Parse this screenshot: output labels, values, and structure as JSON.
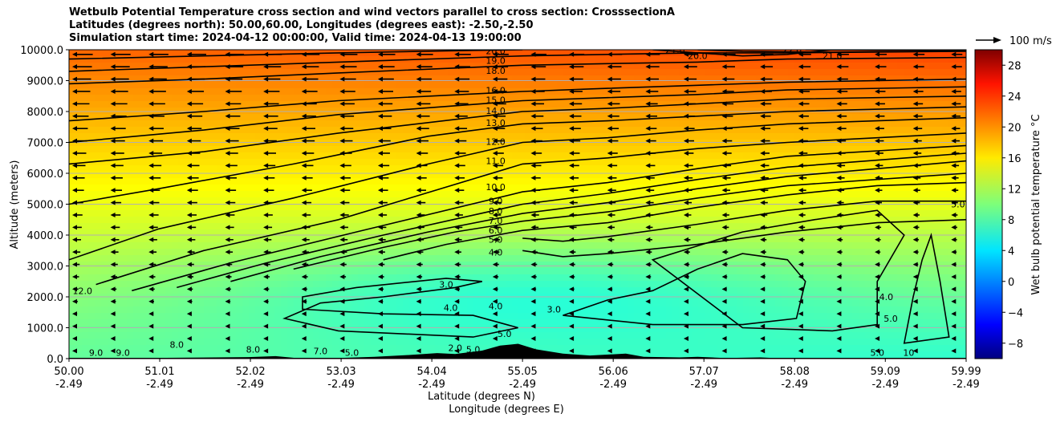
{
  "title_lines": [
    "Wetbulb Potential Temperature cross section and wind vectors parallel to cross section: CrosssectionA",
    "Latitudes (degrees north): 50.00,60.00, Longitudes (degrees east): -2.50,-2.50",
    "Simulation start time: 2024-04-12 00:00:00, Valid time: 2024-04-13 19:00:00"
  ],
  "chart_data": {
    "type": "heatmap",
    "xlabel_lat": "Latitude (degrees N)",
    "xlabel_lon": "Longitude (degrees E)",
    "ylabel": "Altitude (meters)",
    "colorbar_label": "Wet bulb potential temperature °C",
    "colorbar_range": [
      -10,
      30
    ],
    "colorbar_ticks": [
      "−8",
      "−4",
      "0",
      "4",
      "8",
      "12",
      "16",
      "20",
      "24",
      "28"
    ],
    "colorbar_tick_values": [
      -8,
      -4,
      0,
      4,
      8,
      12,
      16,
      20,
      24,
      28
    ],
    "colormap": "jet",
    "xlim": [
      50.0,
      59.99
    ],
    "ylim": [
      0,
      10000
    ],
    "x_ticks": [
      {
        "value": 50.0,
        "lat": "50.00",
        "lon": "-2.49"
      },
      {
        "value": 51.01,
        "lat": "51.01",
        "lon": "-2.49"
      },
      {
        "value": 52.02,
        "lat": "52.02",
        "lon": "-2.49"
      },
      {
        "value": 53.03,
        "lat": "53.03",
        "lon": "-2.49"
      },
      {
        "value": 54.04,
        "lat": "54.04",
        "lon": "-2.49"
      },
      {
        "value": 55.05,
        "lat": "55.05",
        "lon": "-2.49"
      },
      {
        "value": 56.06,
        "lat": "56.06",
        "lon": "-2.49"
      },
      {
        "value": 57.07,
        "lat": "57.07",
        "lon": "-2.49"
      },
      {
        "value": 58.08,
        "lat": "58.08",
        "lon": "-2.49"
      },
      {
        "value": 59.09,
        "lat": "59.09",
        "lon": "-2.49"
      },
      {
        "value": 59.99,
        "lat": "59.99",
        "lon": "-2.49"
      }
    ],
    "y_ticks": [
      {
        "value": 0,
        "label": "0.0"
      },
      {
        "value": 1000,
        "label": "1000.0"
      },
      {
        "value": 2000,
        "label": "2000.0"
      },
      {
        "value": 3000,
        "label": "3000.0"
      },
      {
        "value": 4000,
        "label": "4000.0"
      },
      {
        "value": 5000,
        "label": "5000.0"
      },
      {
        "value": 6000,
        "label": "6000.0"
      },
      {
        "value": 7000,
        "label": "7000.0"
      },
      {
        "value": 8000,
        "label": "8000.0"
      },
      {
        "value": 9000,
        "label": "9000.0"
      },
      {
        "value": 10000,
        "label": "10000.0"
      }
    ],
    "grid": "horizontal",
    "wind_key_label": "100 m/s",
    "contours": [
      {
        "level": "4.0",
        "points": [
          [
            55.05,
            3500
          ],
          [
            55.5,
            3300
          ],
          [
            56.0,
            3400
          ],
          [
            57.0,
            3700
          ],
          [
            58.0,
            4100
          ],
          [
            59.0,
            4400
          ],
          [
            59.99,
            4500
          ]
        ]
      },
      {
        "level": "5.0",
        "points": [
          [
            55.05,
            3900
          ],
          [
            55.5,
            3800
          ],
          [
            56.0,
            3950
          ],
          [
            57.0,
            4350
          ],
          [
            58.0,
            4800
          ],
          [
            59.0,
            5100
          ],
          [
            59.99,
            5100
          ]
        ]
      },
      {
        "level": "6.0",
        "points": [
          [
            53.5,
            3200
          ],
          [
            54.2,
            3700
          ],
          [
            55.05,
            4150
          ],
          [
            56.0,
            4400
          ],
          [
            57.0,
            4900
          ],
          [
            58.0,
            5300
          ],
          [
            59.0,
            5600
          ],
          [
            59.99,
            5700
          ]
        ]
      },
      {
        "level": "7.0",
        "points": [
          [
            52.5,
            2900
          ],
          [
            53.5,
            3600
          ],
          [
            54.3,
            4100
          ],
          [
            55.05,
            4450
          ],
          [
            56.0,
            4750
          ],
          [
            57.0,
            5200
          ],
          [
            58.0,
            5600
          ],
          [
            59.99,
            6000
          ]
        ]
      },
      {
        "level": "8.0",
        "points": [
          [
            51.8,
            2500
          ],
          [
            52.8,
            3300
          ],
          [
            54.0,
            4100
          ],
          [
            55.05,
            4700
          ],
          [
            56.0,
            5050
          ],
          [
            57.0,
            5500
          ],
          [
            58.0,
            5900
          ],
          [
            59.99,
            6400
          ]
        ]
      },
      {
        "level": "9.0",
        "points": [
          [
            51.2,
            2300
          ],
          [
            52.2,
            3100
          ],
          [
            53.5,
            4000
          ],
          [
            55.05,
            5000
          ],
          [
            56.0,
            5350
          ],
          [
            57.0,
            5800
          ],
          [
            58.0,
            6200
          ],
          [
            59.99,
            6650
          ]
        ]
      },
      {
        "level": "10.0",
        "points": [
          [
            50.7,
            2200
          ],
          [
            51.8,
            3100
          ],
          [
            53.2,
            4100
          ],
          [
            55.05,
            5400
          ],
          [
            56.0,
            5700
          ],
          [
            57.0,
            6150
          ],
          [
            58.0,
            6550
          ],
          [
            59.99,
            6900
          ]
        ]
      },
      {
        "level": "11.0",
        "points": [
          [
            50.3,
            2400
          ],
          [
            51.5,
            3500
          ],
          [
            53.0,
            4500
          ],
          [
            55.05,
            6300
          ],
          [
            56.0,
            6500
          ],
          [
            57.0,
            6800
          ],
          [
            58.0,
            7000
          ],
          [
            59.99,
            7300
          ]
        ]
      },
      {
        "level": "12.0",
        "points": [
          [
            50.0,
            3200
          ],
          [
            51.0,
            4200
          ],
          [
            52.5,
            5200
          ],
          [
            54.0,
            6300
          ],
          [
            55.05,
            7000
          ],
          [
            56.0,
            7150
          ],
          [
            57.0,
            7400
          ],
          [
            58.0,
            7600
          ],
          [
            59.99,
            7800
          ]
        ]
      },
      {
        "level": "13.0",
        "points": [
          [
            50.0,
            5000
          ],
          [
            51.0,
            5500
          ],
          [
            52.5,
            6300
          ],
          [
            54.0,
            7200
          ],
          [
            55.05,
            7600
          ],
          [
            56.0,
            7700
          ],
          [
            57.0,
            7850
          ],
          [
            58.0,
            8000
          ],
          [
            59.99,
            8150
          ]
        ]
      },
      {
        "level": "14.0",
        "points": [
          [
            50.0,
            6300
          ],
          [
            51.5,
            6700
          ],
          [
            53.0,
            7300
          ],
          [
            55.05,
            8000
          ],
          [
            56.0,
            8100
          ],
          [
            57.0,
            8250
          ],
          [
            58.0,
            8400
          ],
          [
            59.99,
            8500
          ]
        ]
      },
      {
        "level": "15.0",
        "points": [
          [
            50.0,
            7000
          ],
          [
            51.5,
            7400
          ],
          [
            53.0,
            7900
          ],
          [
            55.05,
            8350
          ],
          [
            56.0,
            8450
          ],
          [
            57.0,
            8550
          ],
          [
            58.0,
            8700
          ],
          [
            59.99,
            8800
          ]
        ]
      },
      {
        "level": "16.0",
        "points": [
          [
            50.0,
            7700
          ],
          [
            51.5,
            8000
          ],
          [
            53.0,
            8350
          ],
          [
            55.05,
            8650
          ],
          [
            56.0,
            8750
          ],
          [
            57.0,
            8850
          ],
          [
            58.0,
            8950
          ],
          [
            59.99,
            9050
          ]
        ]
      },
      {
        "level": "18.0",
        "points": [
          [
            50.0,
            8900
          ],
          [
            51.5,
            9050
          ],
          [
            53.0,
            9250
          ],
          [
            55.05,
            9500
          ],
          [
            56.0,
            9550
          ],
          [
            57.0,
            9600
          ],
          [
            58.0,
            9700
          ],
          [
            59.99,
            9750
          ]
        ]
      },
      {
        "level": "19.0",
        "points": [
          [
            50.0,
            9300
          ],
          [
            51.5,
            9450
          ],
          [
            53.0,
            9600
          ],
          [
            55.05,
            9800
          ],
          [
            56.0,
            9850
          ],
          [
            57.0,
            9900
          ],
          [
            58.0,
            9900
          ],
          [
            59.99,
            9950
          ]
        ]
      },
      {
        "level": "20.0",
        "points": [
          [
            50.0,
            9700
          ],
          [
            51.5,
            9800
          ],
          [
            53.0,
            9900
          ],
          [
            54.5,
            9980
          ],
          [
            55.05,
            10000
          ]
        ]
      },
      {
        "level": "20.0",
        "points": [
          [
            56.5,
            10000
          ],
          [
            57.0,
            9900
          ],
          [
            57.5,
            9800
          ],
          [
            58.0,
            9850
          ],
          [
            58.5,
            10000
          ]
        ]
      },
      {
        "level": "21.0",
        "points": [
          [
            57.0,
            10000
          ],
          [
            57.5,
            9950
          ],
          [
            58.5,
            9920
          ],
          [
            59.99,
            9970
          ]
        ]
      },
      {
        "level": "22.0",
        "points": [
          [
            58.2,
            10000
          ],
          [
            59.0,
            9990
          ],
          [
            59.99,
            10000
          ]
        ]
      }
    ],
    "closed_contours": [
      {
        "level": "3.0",
        "points": [
          [
            52.8,
            1800
          ],
          [
            53.5,
            2000
          ],
          [
            54.3,
            2300
          ],
          [
            54.6,
            2500
          ],
          [
            54.2,
            2600
          ],
          [
            53.2,
            2300
          ],
          [
            52.6,
            2000
          ],
          [
            52.6,
            1600
          ],
          [
            53.5,
            1450
          ],
          [
            54.5,
            1400
          ],
          [
            55.0,
            1000
          ],
          [
            54.5,
            700
          ],
          [
            53.0,
            900
          ],
          [
            52.4,
            1300
          ]
        ]
      },
      {
        "level": "3.0",
        "points": [
          [
            55.5,
            1400
          ],
          [
            56.0,
            1900
          ],
          [
            56.5,
            2200
          ],
          [
            57.0,
            2900
          ],
          [
            57.5,
            3400
          ],
          [
            58.0,
            3200
          ],
          [
            58.2,
            2500
          ],
          [
            58.1,
            1300
          ],
          [
            57.5,
            1100
          ],
          [
            56.5,
            1100
          ]
        ]
      },
      {
        "level": "4.0",
        "points": [
          [
            56.5,
            3200
          ],
          [
            57.5,
            4100
          ],
          [
            58.3,
            4500
          ],
          [
            59.0,
            4800
          ],
          [
            59.3,
            4000
          ],
          [
            59.0,
            2500
          ],
          [
            59.0,
            1100
          ],
          [
            58.5,
            900
          ],
          [
            57.5,
            1000
          ]
        ]
      },
      {
        "level": "5.0",
        "points": [
          [
            59.3,
            500
          ],
          [
            59.4,
            2000
          ],
          [
            59.5,
            3200
          ],
          [
            59.6,
            4000
          ],
          [
            59.7,
            2500
          ],
          [
            59.8,
            700
          ]
        ]
      }
    ],
    "contour_labels": [
      {
        "text": "20.0",
        "x": 54.75,
        "y": 9960
      },
      {
        "text": "19.0",
        "x": 54.75,
        "y": 9650
      },
      {
        "text": "18.0",
        "x": 54.75,
        "y": 9330
      },
      {
        "text": "16.0",
        "x": 54.75,
        "y": 8690
      },
      {
        "text": "15.0",
        "x": 54.75,
        "y": 8380
      },
      {
        "text": "14.0",
        "x": 54.75,
        "y": 8030
      },
      {
        "text": "13.0",
        "x": 54.75,
        "y": 7630
      },
      {
        "text": "12.0",
        "x": 54.75,
        "y": 7030
      },
      {
        "text": "11.0",
        "x": 54.75,
        "y": 6400
      },
      {
        "text": "10.0",
        "x": 54.75,
        "y": 5560
      },
      {
        "text": "9.0",
        "x": 54.75,
        "y": 5100
      },
      {
        "text": "8.0",
        "x": 54.75,
        "y": 4780
      },
      {
        "text": "7.0",
        "x": 54.75,
        "y": 4470
      },
      {
        "text": "6.0",
        "x": 54.75,
        "y": 4150
      },
      {
        "text": "5.0",
        "x": 54.75,
        "y": 3860
      },
      {
        "text": "4.0",
        "x": 54.75,
        "y": 3440
      },
      {
        "text": "21.0",
        "x": 56.75,
        "y": 9990
      },
      {
        "text": "20.0",
        "x": 57.0,
        "y": 9800
      },
      {
        "text": "22.0",
        "x": 58.05,
        "y": 9990
      },
      {
        "text": "21.0",
        "x": 58.5,
        "y": 9800
      },
      {
        "text": "3.0",
        "x": 54.2,
        "y": 2400
      },
      {
        "text": "3.0",
        "x": 55.4,
        "y": 1600
      },
      {
        "text": "4.0",
        "x": 54.25,
        "y": 1650
      },
      {
        "text": "4.0",
        "x": 54.75,
        "y": 1700
      },
      {
        "text": "5.0",
        "x": 54.5,
        "y": 300
      },
      {
        "text": "5.0",
        "x": 54.85,
        "y": 800
      },
      {
        "text": "2.0",
        "x": 54.3,
        "y": 350
      },
      {
        "text": "12.0",
        "x": 50.15,
        "y": 2200
      },
      {
        "text": "9.0",
        "x": 50.3,
        "y": 200
      },
      {
        "text": "9.0",
        "x": 50.6,
        "y": 200
      },
      {
        "text": "8.0",
        "x": 51.2,
        "y": 450
      },
      {
        "text": "8.0",
        "x": 52.05,
        "y": 300
      },
      {
        "text": "7.0",
        "x": 52.8,
        "y": 250
      },
      {
        "text": "5.0",
        "x": 53.15,
        "y": 200
      },
      {
        "text": "4.0",
        "x": 59.1,
        "y": 2000
      },
      {
        "text": "5.0",
        "x": 59.15,
        "y": 1300
      },
      {
        "text": "5.0",
        "x": 59.0,
        "y": 200
      },
      {
        "text": "5.0",
        "x": 59.9,
        "y": 5000
      },
      {
        "text": "10",
        "x": 59.35,
        "y": 200
      }
    ],
    "terrain": [
      [
        50,
        0
      ],
      [
        52.0,
        50
      ],
      [
        52.3,
        80
      ],
      [
        52.6,
        0
      ],
      [
        53.0,
        20
      ],
      [
        53.4,
        60
      ],
      [
        53.8,
        120
      ],
      [
        54.1,
        180
      ],
      [
        54.3,
        150
      ],
      [
        54.6,
        260
      ],
      [
        54.8,
        420
      ],
      [
        55.0,
        480
      ],
      [
        55.2,
        300
      ],
      [
        55.5,
        160
      ],
      [
        55.8,
        100
      ],
      [
        56.2,
        160
      ],
      [
        56.4,
        60
      ],
      [
        56.8,
        40
      ],
      [
        57.0,
        60
      ],
      [
        57.3,
        20
      ],
      [
        57.7,
        40
      ],
      [
        58.0,
        0
      ],
      [
        59.99,
        0
      ]
    ]
  }
}
